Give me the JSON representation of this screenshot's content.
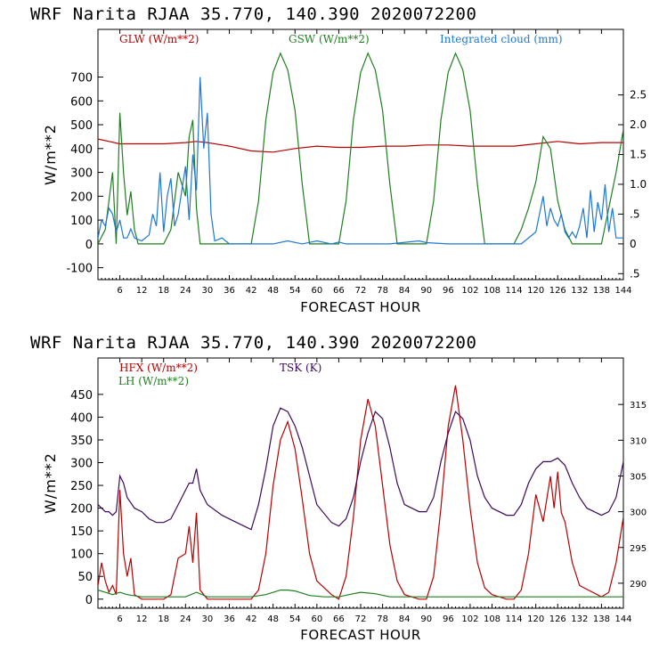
{
  "chart_data": [
    {
      "type": "line",
      "title": "WRF  Narita RJAA   35.770, 140.390  2020072200",
      "xlabel": "FORECAST HOUR",
      "ylabel": "W/m**2",
      "xlim": [
        0,
        144
      ],
      "ylim": [
        -150,
        900
      ],
      "y2lim": [
        -0.6,
        3.6
      ],
      "x_ticks": [
        6,
        12,
        18,
        24,
        30,
        36,
        42,
        48,
        54,
        60,
        66,
        72,
        78,
        84,
        90,
        96,
        102,
        108,
        114,
        120,
        126,
        132,
        138,
        144
      ],
      "y_ticks": [
        -100,
        0,
        100,
        200,
        300,
        400,
        500,
        600,
        700
      ],
      "y_tick_labels": [
        "-100",
        "0",
        "100",
        "200",
        "300",
        "400",
        "500",
        "600",
        "700"
      ],
      "y2_ticks": [
        -0.5,
        0,
        0.5,
        1,
        1.5,
        2,
        2.5
      ],
      "y2_tick_labels": [
        ".5",
        "0",
        ".5",
        "1.0",
        "1.5",
        "2.0",
        "2.5"
      ],
      "legend": [
        {
          "label": "GLW (W/m**2)",
          "color": "#b80000"
        },
        {
          "label": "GSW (W/m**2)",
          "color": "#1f7f1f"
        },
        {
          "label": "Integrated cloud (mm)",
          "color": "#1e78d2"
        }
      ],
      "series": [
        {
          "name": "GLW (W/m**2)",
          "axis": "left",
          "color": "#b80000",
          "x": [
            0,
            3,
            6,
            9,
            12,
            18,
            24,
            27,
            30,
            36,
            42,
            48,
            54,
            60,
            66,
            72,
            78,
            84,
            90,
            96,
            102,
            108,
            114,
            120,
            126,
            132,
            138,
            144
          ],
          "y": [
            440,
            430,
            420,
            420,
            420,
            420,
            425,
            430,
            425,
            410,
            390,
            385,
            400,
            410,
            405,
            405,
            410,
            410,
            415,
            415,
            410,
            410,
            410,
            420,
            430,
            420,
            425,
            425
          ]
        },
        {
          "name": "GSW (W/m**2)",
          "axis": "left",
          "color": "#1f7f1f",
          "x": [
            0,
            2,
            4,
            5,
            6,
            7,
            8,
            9,
            10,
            11,
            12,
            18,
            20,
            22,
            24,
            25,
            26,
            27,
            28,
            29,
            30,
            42,
            44,
            46,
            48,
            50,
            52,
            54,
            56,
            58,
            66,
            68,
            70,
            72,
            74,
            76,
            78,
            80,
            82,
            90,
            92,
            94,
            96,
            98,
            100,
            102,
            104,
            106,
            114,
            116,
            118,
            120,
            122,
            124,
            126,
            128,
            130,
            138,
            140,
            142,
            144
          ],
          "y": [
            0,
            60,
            300,
            0,
            550,
            300,
            120,
            220,
            60,
            0,
            0,
            0,
            60,
            300,
            200,
            450,
            520,
            150,
            0,
            0,
            0,
            0,
            180,
            520,
            720,
            800,
            730,
            560,
            250,
            0,
            0,
            180,
            520,
            720,
            800,
            730,
            560,
            250,
            0,
            0,
            180,
            520,
            720,
            800,
            730,
            560,
            250,
            0,
            0,
            60,
            150,
            260,
            450,
            400,
            180,
            60,
            0,
            0,
            150,
            300,
            480
          ]
        },
        {
          "name": "Integrated cloud (mm)",
          "axis": "right",
          "color": "#1e78d2",
          "x": [
            0,
            1,
            2,
            3,
            4,
            5,
            6,
            7,
            8,
            9,
            10,
            12,
            14,
            15,
            16,
            17,
            18,
            19,
            20,
            21,
            22,
            23,
            24,
            25,
            26,
            27,
            28,
            29,
            30,
            31,
            32,
            34,
            36,
            40,
            48,
            52,
            56,
            60,
            64,
            66,
            68,
            72,
            80,
            88,
            90,
            96,
            104,
            112,
            116,
            120,
            121,
            122,
            123,
            124,
            125,
            126,
            127,
            128,
            129,
            130,
            131,
            132,
            133,
            134,
            135,
            136,
            137,
            138,
            139,
            140,
            141,
            142,
            143,
            144
          ],
          "y": [
            0.1,
            0.4,
            0.3,
            0.6,
            0.5,
            0.2,
            0.4,
            0.1,
            0.1,
            0.25,
            0.1,
            0.05,
            0.15,
            0.5,
            0.3,
            1.2,
            0.2,
            0.8,
            1.1,
            0.3,
            0.5,
            0.9,
            1.3,
            0.4,
            1.5,
            0.9,
            2.8,
            1.6,
            2.2,
            0.5,
            0.05,
            0.1,
            0,
            0,
            0,
            0.05,
            0,
            0.05,
            0,
            0.03,
            0,
            0,
            0,
            0.05,
            0.02,
            0,
            0,
            0,
            0,
            0.2,
            0.5,
            0.8,
            0.3,
            0.6,
            0.4,
            0.3,
            0.5,
            0.2,
            0.1,
            0.2,
            0.1,
            0.3,
            0.6,
            0.1,
            0.9,
            0.2,
            0.7,
            0.4,
            1.0,
            0.2,
            0.6,
            0.1,
            0.1,
            0.1
          ]
        }
      ]
    },
    {
      "type": "line",
      "title": "WRF  Narita RJAA   35.770, 140.390  2020072200",
      "xlabel": "FORECAST HOUR",
      "ylabel": "W/m**2",
      "xlim": [
        0,
        144
      ],
      "ylim": [
        -20,
        530
      ],
      "y2lim": [
        286.5,
        321.5
      ],
      "x_ticks": [
        6,
        12,
        18,
        24,
        30,
        36,
        42,
        48,
        54,
        60,
        66,
        72,
        78,
        84,
        90,
        96,
        102,
        108,
        114,
        120,
        126,
        132,
        138,
        144
      ],
      "y_ticks": [
        0,
        50,
        100,
        150,
        200,
        250,
        300,
        350,
        400,
        450
      ],
      "y_tick_labels": [
        "0",
        "50",
        "100",
        "150",
        "200",
        "250",
        "300",
        "350",
        "400",
        "450"
      ],
      "y2_ticks": [
        290,
        295,
        300,
        305,
        310,
        315
      ],
      "y2_tick_labels": [
        "290",
        "295",
        "300",
        "305",
        "310",
        "315"
      ],
      "legend": [
        {
          "label": "HFX (W/m**2)",
          "color": "#b80000"
        },
        {
          "label": "LH  (W/m**2)",
          "color": "#1f7f1f"
        },
        {
          "label": "TSK (K)",
          "color": "#3c0a5a"
        }
      ],
      "series": [
        {
          "name": "HFX (W/m**2)",
          "axis": "left",
          "color": "#b80000",
          "x": [
            0,
            1,
            2,
            3,
            4,
            5,
            6,
            7,
            8,
            9,
            10,
            12,
            18,
            20,
            22,
            24,
            25,
            26,
            27,
            28,
            30,
            36,
            42,
            44,
            46,
            48,
            50,
            52,
            54,
            56,
            58,
            60,
            64,
            66,
            68,
            70,
            72,
            74,
            76,
            78,
            80,
            82,
            84,
            88,
            90,
            92,
            94,
            96,
            98,
            100,
            102,
            104,
            106,
            108,
            112,
            114,
            116,
            118,
            120,
            122,
            124,
            125,
            126,
            127,
            128,
            130,
            132,
            138,
            140,
            142,
            144
          ],
          "y": [
            30,
            80,
            40,
            15,
            30,
            10,
            240,
            100,
            50,
            90,
            10,
            0,
            0,
            10,
            90,
            100,
            160,
            80,
            190,
            20,
            0,
            0,
            0,
            20,
            100,
            250,
            350,
            390,
            330,
            220,
            100,
            40,
            10,
            0,
            50,
            180,
            350,
            440,
            380,
            250,
            120,
            40,
            10,
            0,
            0,
            50,
            200,
            380,
            470,
            350,
            200,
            80,
            25,
            10,
            0,
            0,
            20,
            100,
            230,
            170,
            270,
            200,
            280,
            190,
            170,
            80,
            30,
            5,
            15,
            80,
            180
          ]
        },
        {
          "name": "LH  (W/m**2)",
          "axis": "left",
          "color": "#1f7f1f",
          "x": [
            0,
            2,
            4,
            6,
            8,
            12,
            18,
            24,
            27,
            30,
            36,
            42,
            46,
            50,
            52,
            54,
            58,
            62,
            66,
            70,
            72,
            76,
            80,
            84,
            90,
            96,
            108,
            120,
            132,
            138,
            144
          ],
          "y": [
            20,
            15,
            10,
            15,
            10,
            5,
            5,
            5,
            15,
            5,
            5,
            5,
            10,
            20,
            20,
            18,
            8,
            5,
            5,
            12,
            15,
            12,
            5,
            5,
            5,
            5,
            5,
            5,
            5,
            5,
            5
          ]
        },
        {
          "name": "TSK (K)",
          "axis": "right",
          "color": "#3c0a5a",
          "x": [
            0,
            1,
            2,
            3,
            4,
            5,
            6,
            7,
            8,
            10,
            12,
            14,
            16,
            18,
            20,
            22,
            24,
            25,
            26,
            27,
            28,
            30,
            34,
            38,
            42,
            44,
            46,
            48,
            50,
            52,
            54,
            56,
            58,
            60,
            64,
            66,
            68,
            70,
            72,
            74,
            76,
            78,
            80,
            82,
            84,
            88,
            90,
            92,
            94,
            96,
            98,
            100,
            102,
            104,
            106,
            108,
            112,
            114,
            116,
            118,
            120,
            122,
            124,
            126,
            128,
            130,
            132,
            134,
            138,
            140,
            142,
            144
          ],
          "y": [
            301,
            300.5,
            300,
            300,
            299.5,
            300,
            305,
            304,
            302,
            300.5,
            300,
            299,
            298.5,
            298.5,
            299,
            301,
            303,
            304,
            304,
            306,
            303,
            301,
            299.5,
            298.5,
            297.5,
            301,
            306,
            312,
            314.5,
            314,
            312,
            309,
            305,
            301,
            298.5,
            298,
            299,
            302,
            307,
            311,
            314,
            313,
            309,
            304,
            301,
            300,
            300,
            302,
            307,
            311,
            314,
            313,
            310,
            305,
            302,
            300.5,
            299.5,
            299.5,
            301,
            304,
            306,
            307,
            307,
            307.5,
            306.5,
            304,
            302,
            300.5,
            299.5,
            300,
            302,
            307
          ]
        }
      ]
    }
  ]
}
